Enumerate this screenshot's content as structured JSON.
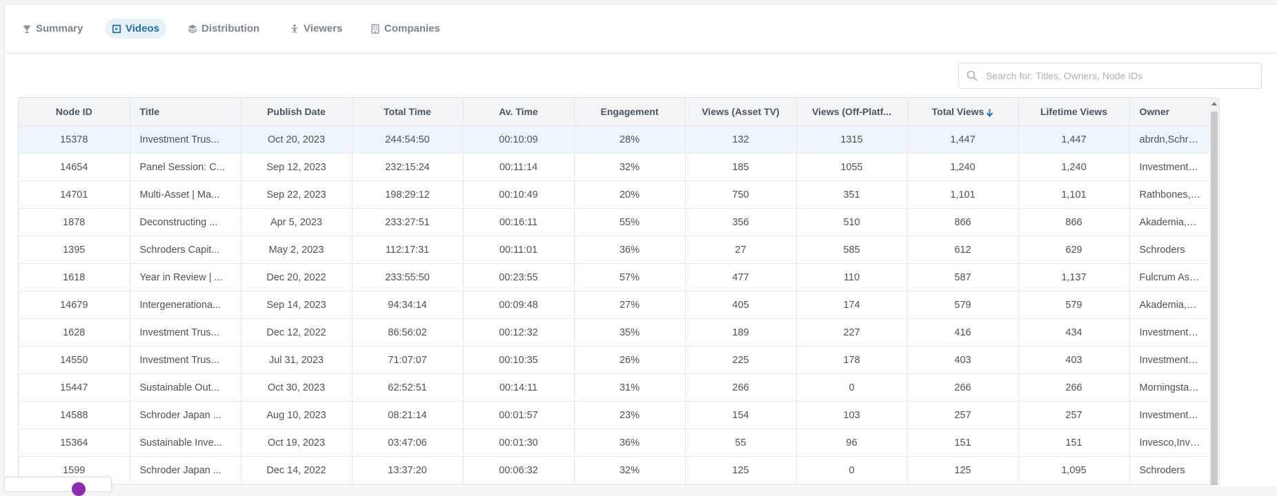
{
  "tabs": [
    {
      "label": "Summary",
      "icon": "trophy-icon",
      "active": false
    },
    {
      "label": "Videos",
      "icon": "video-icon",
      "active": true
    },
    {
      "label": "Distribution",
      "icon": "layers-icon",
      "active": false
    },
    {
      "label": "Viewers",
      "icon": "person-icon",
      "active": false
    },
    {
      "label": "Companies",
      "icon": "building-icon",
      "active": false
    }
  ],
  "search": {
    "placeholder": "Search for: Titles, Owners, Node IDs",
    "value": ""
  },
  "table": {
    "columns": [
      "Node ID",
      "Title",
      "Publish Date",
      "Total Time",
      "Av. Time",
      "Engagement",
      "Views (Asset TV)",
      "Views (Off-Platf...",
      "Total Views",
      "Lifetime Views",
      "Owner"
    ],
    "sorted_column": "Total Views",
    "sort_direction": "descending",
    "rows": [
      [
        "15378",
        "Investment Trus...",
        "Oct 20, 2023",
        "244:54:50",
        "00:10:09",
        "28%",
        "132",
        "1315",
        "1,447",
        "1,447",
        "abrdn,Schroders..."
      ],
      [
        "14654",
        "Panel Session: C...",
        "Sep 12, 2023",
        "232:15:24",
        "00:11:14",
        "32%",
        "185",
        "1055",
        "1,240",
        "1,240",
        "Investment Trus..."
      ],
      [
        "14701",
        "Multi-Asset | Ma...",
        "Sep 22, 2023",
        "198:29:12",
        "00:10:49",
        "20%",
        "750",
        "351",
        "1,101",
        "1,101",
        "Rathbones,Bailli..."
      ],
      [
        "1878",
        "Deconstructing ...",
        "Apr 5, 2023",
        "233:27:51",
        "00:16:11",
        "55%",
        "356",
        "510",
        "866",
        "866",
        "Akademia,AJ Be..."
      ],
      [
        "1395",
        "Schroders Capit...",
        "May 2, 2023",
        "112:17:31",
        "00:11:01",
        "36%",
        "27",
        "585",
        "612",
        "629",
        "Schroders"
      ],
      [
        "1618",
        "Year in Review | ...",
        "Dec 20, 2022",
        "233:55:50",
        "00:23:55",
        "57%",
        "477",
        "110",
        "587",
        "1,137",
        "Fulcrum Asset M..."
      ],
      [
        "14679",
        "Intergenerationa...",
        "Sep 14, 2023",
        "94:34:14",
        "00:09:48",
        "27%",
        "405",
        "174",
        "579",
        "579",
        "Akademia,RBC ..."
      ],
      [
        "1628",
        "Investment Trus...",
        "Dec 12, 2022",
        "86:56:02",
        "00:12:32",
        "35%",
        "189",
        "227",
        "416",
        "434",
        "Investment Trus..."
      ],
      [
        "14550",
        "Investment Trus...",
        "Jul 31, 2023",
        "71:07:07",
        "00:10:35",
        "26%",
        "225",
        "178",
        "403",
        "403",
        "Investment Trus..."
      ],
      [
        "15447",
        "Sustainable Out...",
        "Oct 30, 2023",
        "62:52:51",
        "00:14:11",
        "31%",
        "266",
        "0",
        "266",
        "266",
        "Morningstar Inv..."
      ],
      [
        "14588",
        "Schroder Japan ...",
        "Aug 10, 2023",
        "08:21:14",
        "00:01:57",
        "23%",
        "154",
        "103",
        "257",
        "257",
        "Investment Trus..."
      ],
      [
        "15364",
        "Sustainable Inve...",
        "Oct 19, 2023",
        "03:47:06",
        "00:01:30",
        "36%",
        "55",
        "96",
        "151",
        "151",
        "Invesco,Invesco,..."
      ],
      [
        "1599",
        "Schroder Japan ...",
        "Dec 14, 2022",
        "13:37:20",
        "00:06:32",
        "32%",
        "125",
        "0",
        "125",
        "1,095",
        "Schroders"
      ]
    ]
  },
  "colors": {
    "accent": "#1f6fb3",
    "active_tab_bg": "#e7f1fa",
    "selected_row_bg": "#eef5fc",
    "chat_bubble": "#8b2bb3"
  }
}
